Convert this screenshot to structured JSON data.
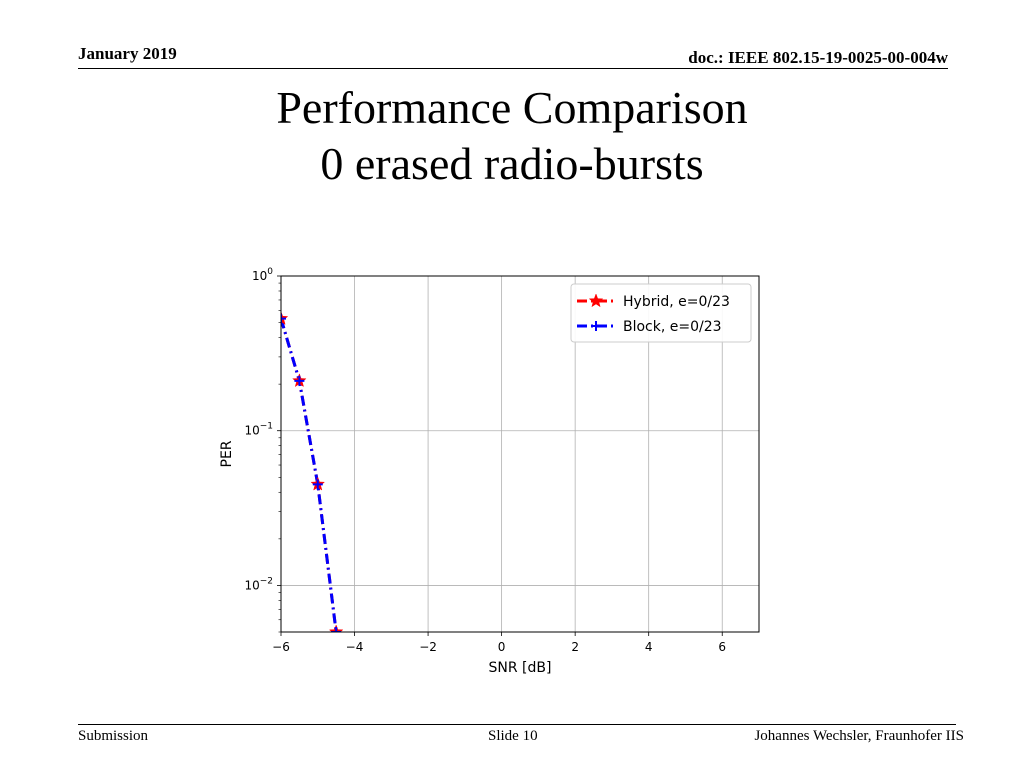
{
  "header": {
    "date": "January 2019",
    "doc": "doc.: IEEE 802.15-19-0025-00-004w"
  },
  "slide": {
    "title_line1": "Performance Comparison",
    "title_line2": "0 erased radio-bursts"
  },
  "footer": {
    "left": "Submission",
    "center": "Slide 10",
    "right": "Johannes Wechsler, Fraunhofer IIS"
  },
  "chart_data": {
    "type": "line",
    "xlabel": "SNR [dB]",
    "ylabel": "PER",
    "xlim": [
      -6,
      7
    ],
    "ylim": [
      0.005,
      1
    ],
    "yscale": "log",
    "grid": true,
    "legend_position": "top-right",
    "x_ticks": [
      -6,
      -4,
      -2,
      0,
      2,
      4,
      6
    ],
    "x_tick_labels": [
      "−6",
      "−4",
      "−2",
      "0",
      "2",
      "4",
      "6"
    ],
    "y_ticks": [
      1,
      0.1,
      0.01
    ],
    "y_tick_labels": [
      {
        "base": "10",
        "exp": "0"
      },
      {
        "base": "10",
        "exp": "−1"
      },
      {
        "base": "10",
        "exp": "−2"
      }
    ],
    "series": [
      {
        "name": "Hybrid, e=0/23",
        "color": "#ff0000",
        "marker": "star",
        "linestyle": "dashdot",
        "x": [
          -6,
          -5.5,
          -5,
          -4.5
        ],
        "y": [
          0.53,
          0.21,
          0.045,
          0.005
        ]
      },
      {
        "name": "Block, e=0/23",
        "color": "#0000ff",
        "marker": "plus",
        "linestyle": "dashdot",
        "x": [
          -6,
          -5.5,
          -5,
          -4.5
        ],
        "y": [
          0.53,
          0.21,
          0.045,
          0.005
        ]
      }
    ]
  }
}
